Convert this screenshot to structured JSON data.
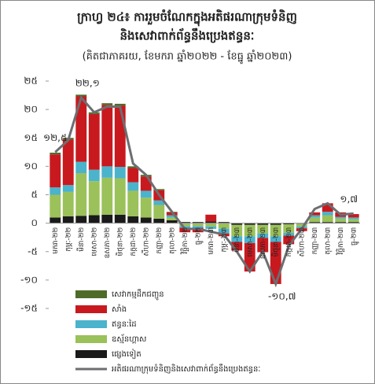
{
  "chart_data": {
    "type": "stacked-bar-line",
    "title": [
      "ក្រាហ្វ ២៤៖ ការរួមចំណែកក្នុងអតិផរណាក្រុមទំនិញ",
      "និងសេវាពាក់ព័ន្ធនឹងប្រេងឥន្ធនៈ"
    ],
    "subtitle": "(គិតជាភាគរយ, ខែមករា ឆ្នាំ២០២២ - ខែធ្នូ ឆ្នាំ២០២៣)",
    "categories": [
      "មករា-២២",
      "កុម្ភៈ-២២",
      "មីនា-២២",
      "មេសា-២២",
      "ឧសភា-២២",
      "មិថុនា-២២",
      "កក្កដា-២២",
      "សីហា-២២",
      "កញ្ញា-២២",
      "តុលា-២២",
      "វិច្ឆិកា-២២",
      "ធ្នូ-២២",
      "មករា-២៣",
      "កុម្ភៈ-២៣",
      "មីនា-២៣",
      "មេសា-២៣",
      "ឧសភា-២៣",
      "មិថុនា-២៣",
      "កក្កដា-២៣",
      "សីហា-២៣",
      "កញ្ញា-២៣",
      "តុលា-២៣",
      "វិច្ឆិកា-២៣",
      "ធ្នូ-២៣"
    ],
    "ylim": [
      -15,
      25
    ],
    "yticks": [
      {
        "value": 25,
        "label": "២៥"
      },
      {
        "value": 20,
        "label": "២០"
      },
      {
        "value": 15,
        "label": "១៥"
      },
      {
        "value": 10,
        "label": "១០"
      },
      {
        "value": 5,
        "label": "៥"
      },
      {
        "value": 0,
        "label": "០"
      },
      {
        "value": -5,
        "label": "-៥"
      },
      {
        "value": -10,
        "label": "-១០"
      },
      {
        "value": -15,
        "label": "-១៥"
      }
    ],
    "series": [
      {
        "name": "សេវាកម្មដឹកជញ្ជូន",
        "color": "#4f6b2a",
        "kind": "bar",
        "values": [
          0.3,
          0.3,
          0.3,
          0.3,
          0.3,
          0.3,
          0.3,
          0.3,
          0.2,
          0.1,
          0,
          0,
          0,
          0,
          0,
          0,
          0,
          0,
          0,
          0,
          0,
          0,
          0,
          0
        ]
      },
      {
        "name": "សាំង",
        "color": "#c8191f",
        "kind": "bar",
        "values": [
          5.8,
          8,
          11.5,
          9.8,
          10.8,
          10.8,
          2.5,
          2.5,
          1.8,
          0.5,
          -0.8,
          -0.8,
          1.2,
          -0.5,
          -1.5,
          -5,
          -2.5,
          -7.4,
          -1.5,
          -0.5,
          0.5,
          1.5,
          0.8,
          0.6
        ]
      },
      {
        "name": "ឥន្ធនៈដៃ",
        "color": "#4bb3cc",
        "kind": "bar",
        "values": [
          1.3,
          1.2,
          2,
          2,
          2,
          2,
          1.5,
          1.2,
          0.8,
          0.4,
          -0.3,
          -0.3,
          -0.4,
          -0.8,
          -1,
          -1.2,
          -0.8,
          -1,
          -0.5,
          -0.3,
          0.4,
          0.6,
          0.3,
          0.3
        ]
      },
      {
        "name": "ឧស្ម័នហ្គាស",
        "color": "#9bc15a",
        "kind": "bar",
        "values": [
          4,
          4.3,
          7.5,
          6,
          6.5,
          6.4,
          4.5,
          3.5,
          2.4,
          0.5,
          -0.5,
          -0.5,
          -0.6,
          -1,
          -2,
          -2,
          -1.5,
          -2,
          -1.5,
          -0.5,
          0.8,
          1.2,
          0.6,
          0.5
        ]
      },
      {
        "name": "ផ្សេងទៀត",
        "color": "#1a1a1a",
        "kind": "bar",
        "values": [
          1,
          1.2,
          1.3,
          1.4,
          1.5,
          1.5,
          1.2,
          1,
          0.8,
          0.5,
          0.2,
          0.2,
          0.3,
          0.2,
          -0.3,
          -0.3,
          -0.3,
          -0.3,
          -0.2,
          -0.1,
          0.2,
          0.2,
          0.2,
          0.2
        ]
      },
      {
        "name": "អតិផរណាក្រុមទំនិញនិងសេវាពាក់ព័ន្ធនឹងប្រេងឥន្ធនៈ",
        "color": "#6d6e71",
        "kind": "line",
        "values": [
          12.5,
          14.6,
          22.1,
          19.5,
          20.5,
          20.5,
          10.5,
          8.5,
          5,
          2,
          -1,
          -1,
          -1.5,
          -2,
          -5,
          -8.5,
          -5,
          -10.7,
          -4,
          -1,
          2.5,
          3.5,
          1.5,
          1.7
        ],
        "value_labels": [
          "១២,៥",
          null,
          "២២,១",
          null,
          null,
          null,
          null,
          null,
          null,
          null,
          null,
          null,
          null,
          null,
          null,
          null,
          null,
          "-១០,៧",
          null,
          null,
          null,
          null,
          null,
          "១,៧"
        ]
      }
    ]
  }
}
